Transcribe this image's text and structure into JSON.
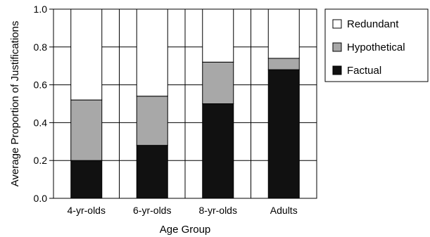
{
  "chart_data": {
    "type": "bar",
    "stacked": true,
    "title": "",
    "xlabel": "Age Group",
    "ylabel": "Average Proportion of Justifications",
    "ylim": [
      0,
      1.0
    ],
    "yticks": [
      "0.0",
      "0.2",
      "0.4",
      "0.6",
      "0.8",
      "1.0"
    ],
    "grid": true,
    "legend_position": "right",
    "categories": [
      "4-yr-olds",
      "6-yr-olds",
      "8-yr-olds",
      "Adults"
    ],
    "series": [
      {
        "name": "Factual",
        "values": [
          0.2,
          0.28,
          0.5,
          0.68
        ],
        "color": "#111111"
      },
      {
        "name": "Hypothetical",
        "values": [
          0.32,
          0.26,
          0.22,
          0.06
        ],
        "color": "#a8a8a8"
      },
      {
        "name": "Redundant",
        "values": [
          0.48,
          0.46,
          0.28,
          0.26
        ],
        "color": "#ffffff"
      }
    ],
    "legend_order": [
      "Redundant",
      "Hypothetical",
      "Factual"
    ]
  }
}
